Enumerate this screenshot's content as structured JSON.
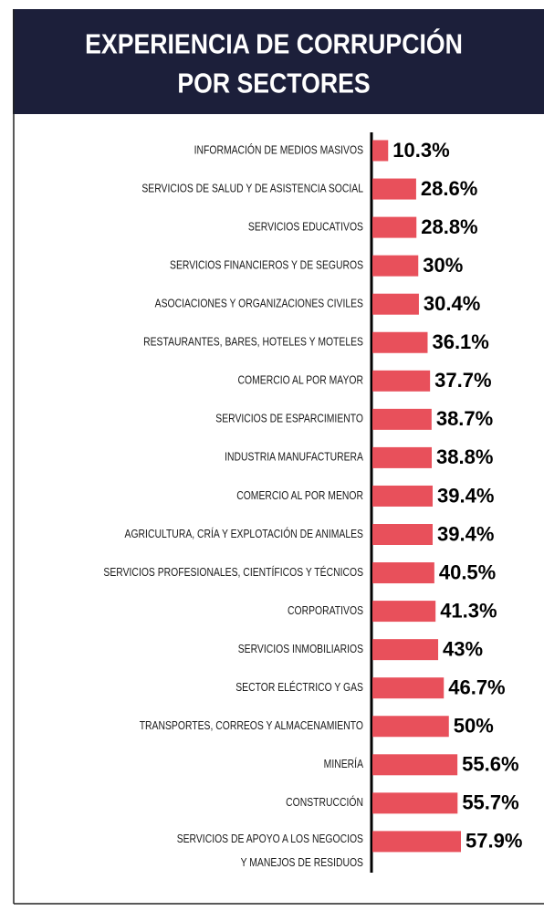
{
  "chart_data": {
    "type": "bar",
    "orientation": "horizontal",
    "title": "EXPERIENCIA DE CORRUPCIÓN\nPOR SECTORES",
    "color": "#e8505b",
    "categories": [
      "INFORMACIÓN DE MEDIOS MASIVOS",
      "SERVICIOS DE SALUD Y DE ASISTENCIA SOCIAL",
      "SERVICIOS EDUCATIVOS",
      "SERVICIOS FINANCIEROS Y DE SEGUROS",
      "ASOCIACIONES Y ORGANIZACIONES CIVILES",
      "RESTAURANTES, BARES, HOTELES Y MOTELES",
      "COMERCIO AL POR MAYOR",
      "SERVICIOS DE ESPARCIMIENTO",
      "INDUSTRIA MANUFACTURERA",
      "COMERCIO AL POR MENOR",
      "AGRICULTURA, CRÍA Y EXPLOTACIÓN DE ANIMALES",
      "SERVICIOS PROFESIONALES, CIENTÍFICOS Y TÉCNICOS",
      "CORPORATIVOS",
      "SERVICIOS INMOBILIARIOS",
      "SECTOR ELÉCTRICO Y GAS",
      "TRANSPORTES, CORREOS Y ALMACENAMIENTO",
      "MINERÍA",
      "CONSTRUCCIÓN",
      "SERVICIOS DE APOYO A LOS NEGOCIOS\nY MANEJOS DE RESIDUOS"
    ],
    "values": [
      10.3,
      28.6,
      28.8,
      30,
      30.4,
      36.1,
      37.7,
      38.7,
      38.8,
      39.4,
      39.4,
      40.5,
      41.3,
      43,
      46.7,
      50,
      55.6,
      55.7,
      57.9
    ],
    "value_labels": [
      "10.3%",
      "28.6%",
      "28.8%",
      "30%",
      "30.4%",
      "36.1%",
      "37.7%",
      "38.7%",
      "38.8%",
      "39.4%",
      "39.4%",
      "40.5%",
      "41.3%",
      "43%",
      "46.7%",
      "50%",
      "55.6%",
      "55.7%",
      "57.9%"
    ]
  }
}
